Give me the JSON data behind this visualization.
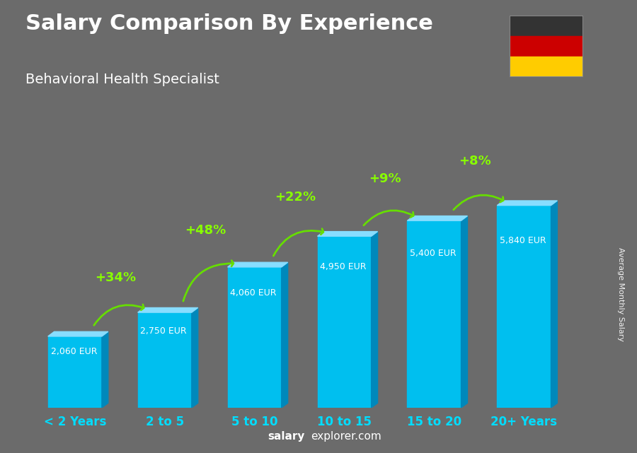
{
  "title": "Salary Comparison By Experience",
  "subtitle": "Behavioral Health Specialist",
  "categories": [
    "< 2 Years",
    "2 to 5",
    "5 to 10",
    "10 to 15",
    "15 to 20",
    "20+ Years"
  ],
  "values": [
    2060,
    2750,
    4060,
    4950,
    5400,
    5840
  ],
  "value_labels": [
    "2,060 EUR",
    "2,750 EUR",
    "4,060 EUR",
    "4,950 EUR",
    "5,400 EUR",
    "5,840 EUR"
  ],
  "pct_labels": [
    "+34%",
    "+48%",
    "+22%",
    "+9%",
    "+8%"
  ],
  "bar_color_face": "#00bfef",
  "bar_color_side": "#0088bb",
  "bar_color_top": "#88ddff",
  "bg_color": "#6b6b6b",
  "title_color": "#ffffff",
  "subtitle_color": "#ffffff",
  "pct_color": "#88ff00",
  "xlabel_color": "#00ddff",
  "ylabel_text": "Average Monthly Salary",
  "footer_salary": "salary",
  "footer_rest": "explorer.com",
  "flag_colors": [
    "#333333",
    "#cc0000",
    "#ffcc00"
  ],
  "ylim": [
    0,
    6800
  ],
  "arrow_color": "#66dd00"
}
